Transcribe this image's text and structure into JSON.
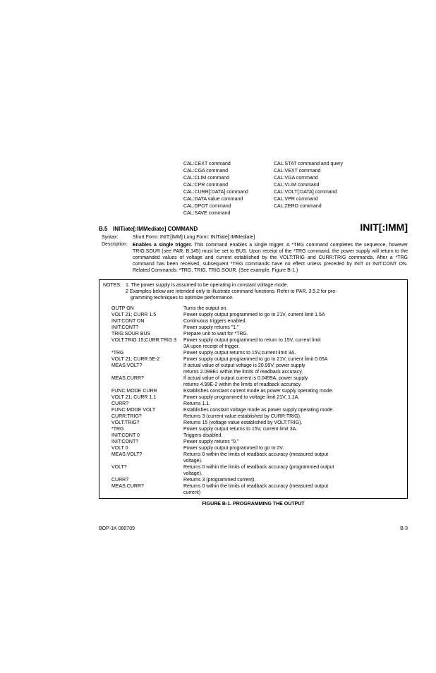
{
  "commands_left": [
    "CAL:CEXT command",
    "CAL:CGA command",
    "CAL:CLIM command",
    "CAL:CPR command",
    "CAL:CURR[:DATA] command",
    "CAL:DATA value command",
    "CAL:DPOT command",
    "CAL:SAVE command"
  ],
  "commands_right": [
    "CAL:STAT command and query",
    "CAL:VEXT command",
    "CAL:VGA command",
    "CAL:VLIM command",
    "CAL:VOLT[:DATA] command",
    "CAL:VPR command",
    "CAL:ZERO command"
  ],
  "section": {
    "num": "B.5",
    "title": "INITiate[:IMMediate] COMMAND",
    "right": "INIT[:IMM]"
  },
  "syntax": {
    "label": "Syntax:",
    "body": "Short Form: INIT:[IMM]    Long Form: INITiate[:IMMediate]"
  },
  "description": {
    "label": "Description:",
    "lead": "Enables a single trigger.",
    "body": " This command enables a single trigger. A *TRG command completes the sequence, however TRIG:SOUR (see PAR. B.145) must be set to BUS. Upon receipt of the *TRG command, the power supply will return to the commanded values of voltage and current established by the VOLT:TRIG and CURR:TRIG commands. After a *TRG command has been received, subsequent *TRG commands have no effect unless preceded by INIT or INIT:CONT ON. Related Commands: *TRG, TRIG, TRIG:SOUR. (See example, Figure B-1.)"
  },
  "notes": {
    "label": "NOTES:",
    "n1": "1. The power supply is assumed to be operating in constant voltage mode.",
    "n2a": "2  Examples below are intended only to illustrate command functions. Refer to PAR. 3.5.2 for pro-",
    "n2b": "gramming techniques to optimize performance."
  },
  "examples": [
    {
      "c": "OUTP ON",
      "d": "Turns the output on."
    },
    {
      "c": "VOLT 21; CURR 1.5",
      "d": "Power supply output programmed to go to 21V, current limit 1.5A"
    },
    {
      "c": "INIT:CONT ON",
      "d": "Continuous triggers enabled."
    },
    {
      "c": "INIT:CONT?",
      "d": "Power supply returns \"1.\""
    },
    {
      "c": "TRIG:SOUR BUS",
      "d": "Prepare unit to wait for *TRG."
    },
    {
      "c": "VOLT:TRIG 15;CURR:TRIG 3",
      "d": "Power supply output programmed to return to 15V, current limit"
    },
    {
      "c": "",
      "d": "3A upon receipt of trigger."
    },
    {
      "c": "*TRG",
      "d": "Power supply output returns to 15V,current limit 3A."
    },
    {
      "c": "VOLT 21; CURR 5E-2",
      "d": "Power supply output programmed to go to 21V, current limit 0.05A"
    },
    {
      "c": "MEAS:VOLT?",
      "d": "If actual value of output voltage is 20.99V, power supply"
    },
    {
      "c": "",
      "d": "returns 2.099E1 within the limits of readback accuracy."
    },
    {
      "c": "MEAS:CURR?",
      "d": "If actual value of output current is 0.0499A, power supply"
    },
    {
      "c": "",
      "d": "returns 4.99E-2 within the limits of readback accuracy."
    },
    {
      "c": "FUNC:MODE CURR",
      "d": "Establishes constant current mode as power supply operating mode."
    },
    {
      "c": "VOLT 21; CURR 1.1",
      "d": "Power supply programmed to voltage limit 21V, 1.1A."
    },
    {
      "c": "CURR?",
      "d": "Returns 1.1."
    },
    {
      "c": "FUNC:MODE VOLT",
      "d": "Establishes constant voltage mode as power supply operating mode."
    },
    {
      "c": "CURR:TRIG?",
      "d": "Returns 3 (current value established by CURR:TRIG)."
    },
    {
      "c": "VOLT:TRIG?",
      "d": "Returns 15 (voltage value established by VOLT:TRIG)."
    },
    {
      "c": "*TRG",
      "d": "Power supply output returns to 15V, current limit 3A."
    },
    {
      "c": "INIT:CONT 0",
      "d": "Triggers disabled."
    },
    {
      "c": "INIT:CONT?",
      "d": "Power supply returns \"0.\""
    },
    {
      "c": "VOLT 0",
      "d": "Power supply output programmed to go to 0V."
    },
    {
      "c": "MEAS:VOLT?",
      "d": "Returns 0 within the limits of readback accuracy (measured output"
    },
    {
      "c": "",
      "d": "voltage)."
    },
    {
      "c": "VOLT?",
      "d": "Returns 0 within the limits of readback accuracy (programmed output"
    },
    {
      "c": "",
      "d": "voltage)."
    },
    {
      "c": "CURR?",
      "d": "Returns 3 (programmed current)."
    },
    {
      "c": "MEAS:CURR?",
      "d": "Returns 0 within the limits of readback accuracy (measured output"
    },
    {
      "c": "",
      "d": "current)"
    }
  ],
  "figure_caption": "FIGURE B-1.   PROGRAMMING THE OUTPUT",
  "footer": {
    "left": "BOP-1K 080709",
    "right": "B-3"
  }
}
